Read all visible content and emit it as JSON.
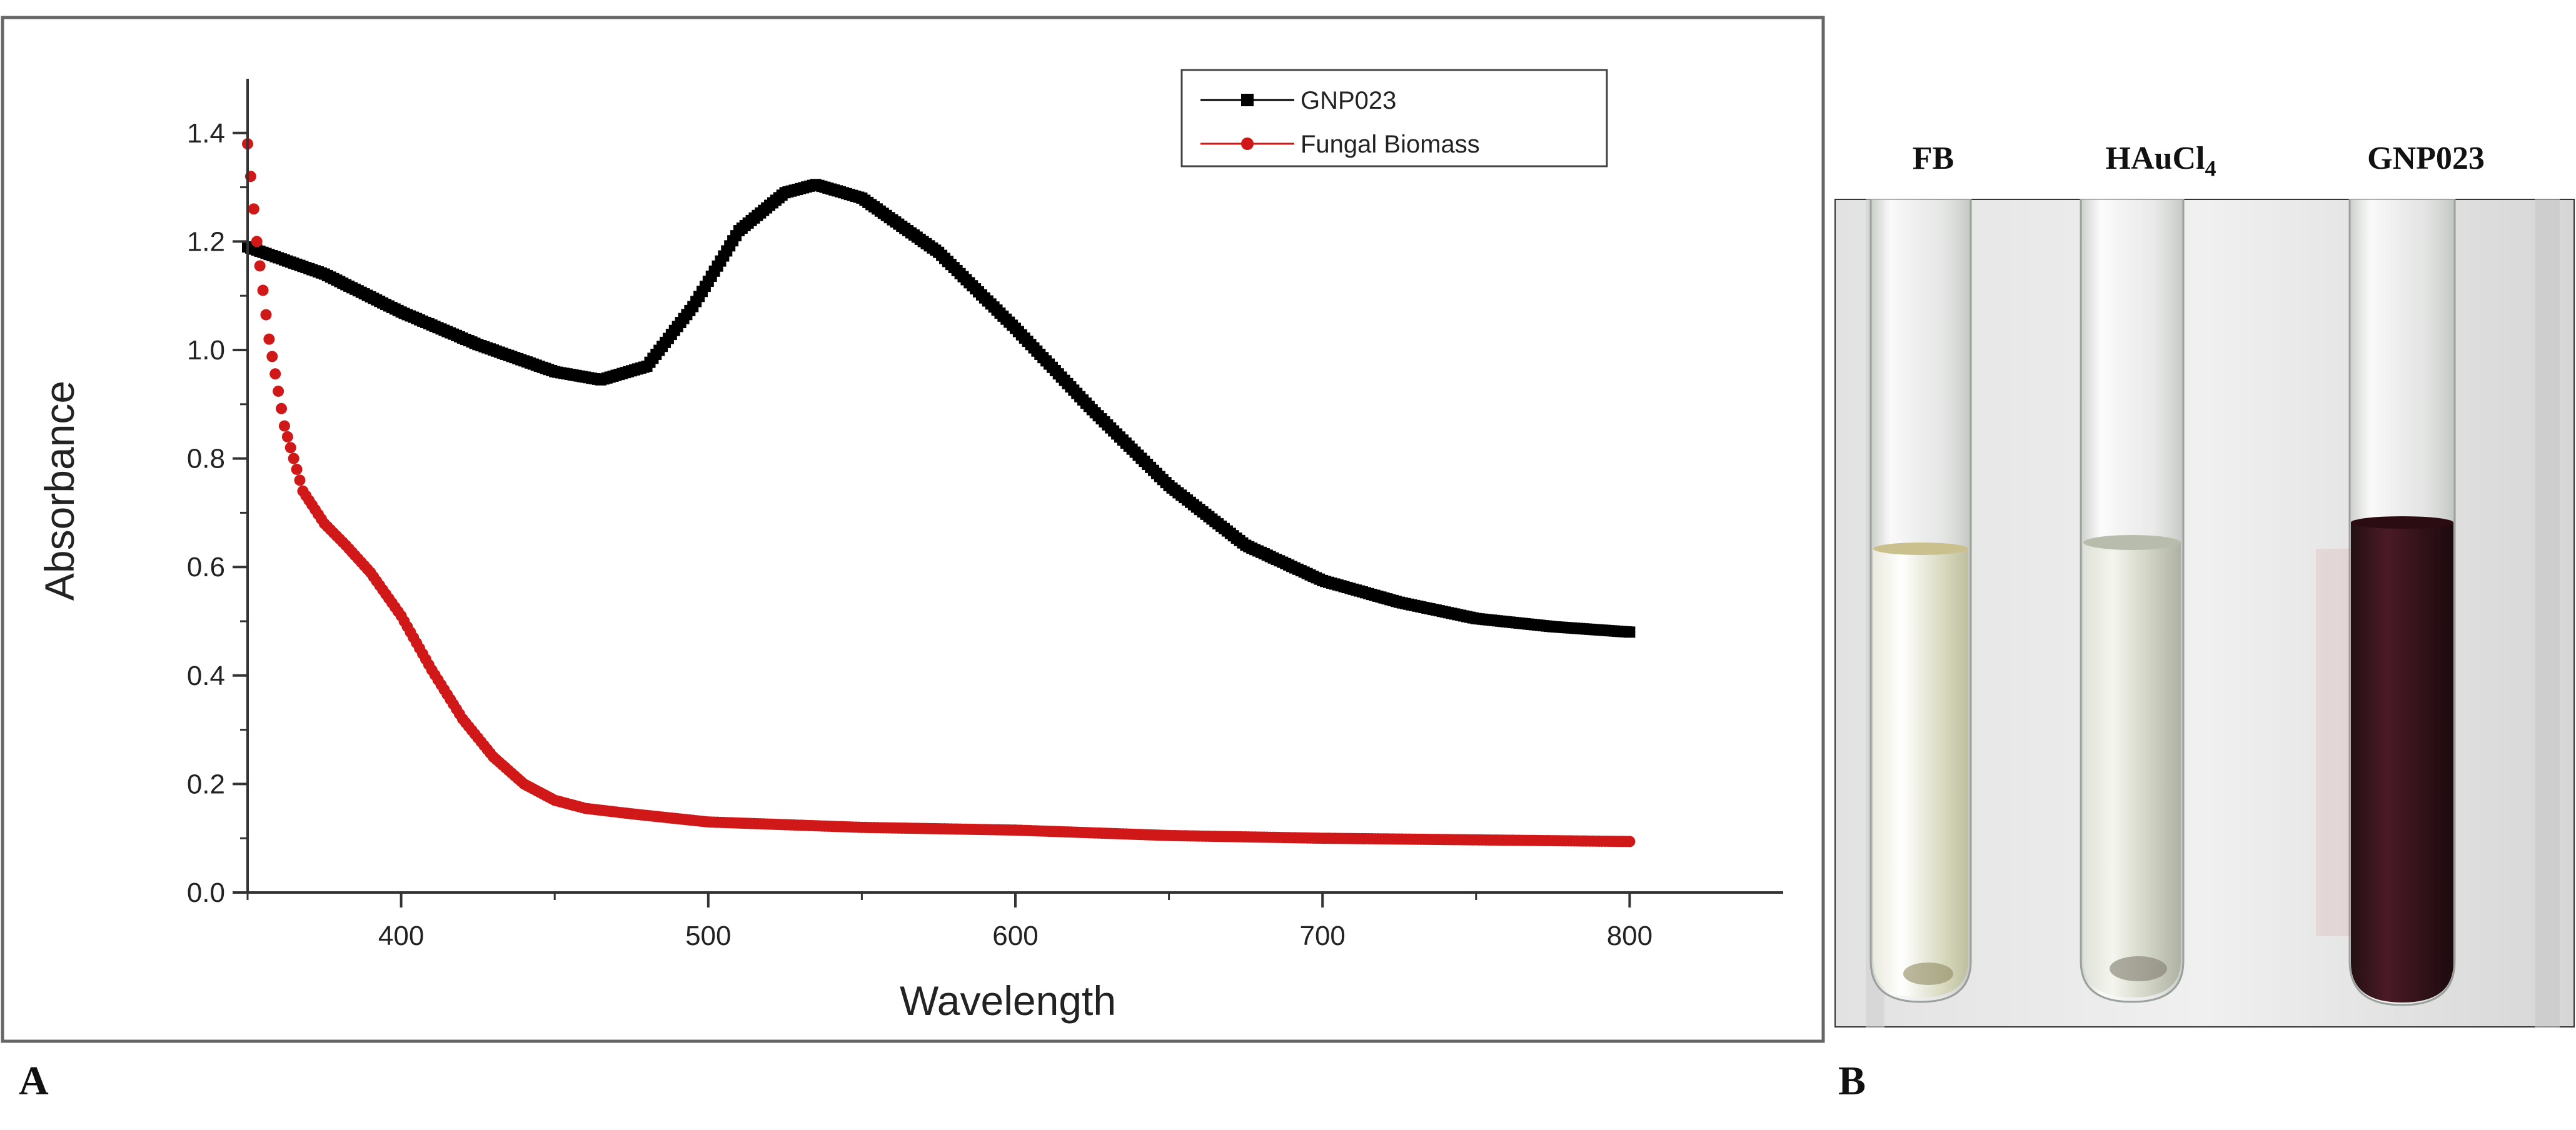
{
  "panels": {
    "a_letter": "A",
    "b_letter": "B"
  },
  "chart_data": {
    "type": "scatter",
    "title": "",
    "xlabel": "Wavelength",
    "ylabel": "Absorbance",
    "xlim": [
      350,
      850
    ],
    "ylim": [
      0.0,
      1.5
    ],
    "x_ticks": [
      400,
      500,
      600,
      700,
      800
    ],
    "y_ticks": [
      0.0,
      0.2,
      0.4,
      0.6,
      0.8,
      1.0,
      1.2,
      1.4
    ],
    "x_tick_labels": [
      "400",
      "500",
      "600",
      "700",
      "800"
    ],
    "y_tick_labels": [
      "0.0",
      "0.2",
      "0.4",
      "0.6",
      "0.8",
      "1.0",
      "1.2",
      "1.4"
    ],
    "legend_position": "top-right",
    "series": [
      {
        "name": "GNP023",
        "color": "#000000",
        "marker": "square",
        "x": [
          350,
          375,
          400,
          425,
          450,
          465,
          480,
          495,
          510,
          525,
          535,
          550,
          575,
          600,
          625,
          650,
          675,
          700,
          725,
          750,
          775,
          800
        ],
        "y": [
          1.19,
          1.14,
          1.07,
          1.01,
          0.96,
          0.945,
          0.97,
          1.08,
          1.22,
          1.29,
          1.305,
          1.28,
          1.18,
          1.04,
          0.89,
          0.75,
          0.64,
          0.575,
          0.535,
          0.505,
          0.49,
          0.48
        ]
      },
      {
        "name": "Fungal Biomass",
        "color": "#d01818",
        "marker": "circle",
        "x": [
          350,
          353,
          357,
          362,
          368,
          375,
          382,
          390,
          400,
          410,
          420,
          430,
          440,
          450,
          460,
          475,
          500,
          550,
          600,
          650,
          700,
          750,
          800
        ],
        "y": [
          1.38,
          1.2,
          1.02,
          0.86,
          0.74,
          0.68,
          0.64,
          0.59,
          0.51,
          0.41,
          0.32,
          0.25,
          0.2,
          0.17,
          0.155,
          0.145,
          0.13,
          0.12,
          0.115,
          0.105,
          0.1,
          0.097,
          0.094
        ]
      }
    ]
  },
  "photo": {
    "tubes": [
      {
        "label": "FB",
        "liquid_color": "#dcdcc0"
      },
      {
        "label": "HAuCl",
        "subscript": "4",
        "liquid_color": "#cfd2c4"
      },
      {
        "label": "GNP023",
        "liquid_color": "#3a0f18"
      }
    ]
  }
}
